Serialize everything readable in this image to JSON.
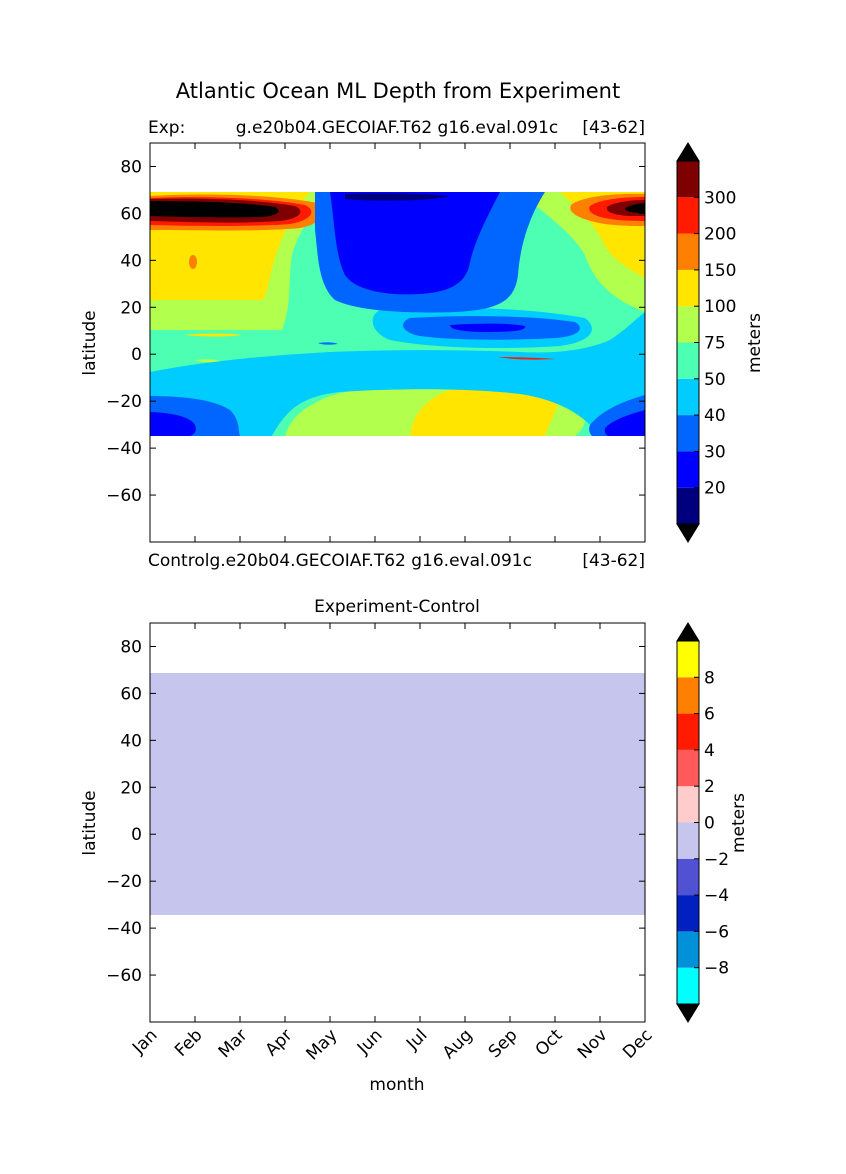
{
  "figure": {
    "suptitle": "Atlantic Ocean ML Depth from Experiment"
  },
  "chart_data": [
    {
      "type": "heatmap",
      "title_left": "Exp:",
      "title_center": "g.e20b04.GECOIAF.T62 g16.eval.091c",
      "title_right": "[43-62]",
      "xlabel_below": "Controlg.e20b04.GECOIAF.T62 g16.eval.091c",
      "xlabel_below_right": "[43-62]",
      "ylabel": "latitude",
      "xlim": [
        0,
        11
      ],
      "ylim": [
        -80,
        90
      ],
      "yticks": [
        80,
        60,
        40,
        20,
        0,
        -20,
        -40,
        -60
      ],
      "data_lat_range": [
        -34,
        69
      ],
      "colorbar": {
        "label": "meters",
        "levels": [
          20,
          30,
          40,
          50,
          75,
          100,
          150,
          200,
          300
        ],
        "colors": [
          "#00007f",
          "#0000ff",
          "#0066ff",
          "#00ccff",
          "#4dffb2",
          "#b2ff4d",
          "#ffe500",
          "#ff8000",
          "#ff1a00",
          "#7f0000"
        ],
        "extend_colors": {
          "low": "#000000",
          "high": "#000000"
        }
      },
      "regions": {
        "deep_core": "#000000",
        "near_zero_pockets": "#ff1a00"
      }
    },
    {
      "type": "heatmap",
      "title": "Experiment-Control",
      "ylabel": "latitude",
      "xlabel": "month",
      "categories": [
        "Jan",
        "Feb",
        "Mar",
        "Apr",
        "May",
        "Jun",
        "Jul",
        "Aug",
        "Sep",
        "Oct",
        "Nov",
        "Dec"
      ],
      "xlim": [
        0,
        11
      ],
      "ylim": [
        -80,
        90
      ],
      "yticks": [
        80,
        60,
        40,
        20,
        0,
        -20,
        -40,
        -60
      ],
      "data_lat_range": [
        -34,
        69
      ],
      "uniform_value_bin": [
        -2,
        0
      ],
      "uniform_color": "#c5c5ee",
      "colorbar": {
        "label": "meters",
        "levels": [
          -8,
          -6,
          -4,
          -2,
          0,
          2,
          4,
          6,
          8
        ],
        "tick_labels": [
          "-8",
          "-6",
          "-4",
          "-2",
          "0",
          "2",
          "4",
          "6",
          "8"
        ],
        "colors": [
          "#00ffff",
          "#0091d9",
          "#0021bf",
          "#5151d3",
          "#c5c5ee",
          "#ffcccc",
          "#ff5959",
          "#ff1a00",
          "#ff8000",
          "#ffff00"
        ],
        "extend_colors": {
          "low": "#000000",
          "high": "#000000"
        }
      }
    }
  ]
}
